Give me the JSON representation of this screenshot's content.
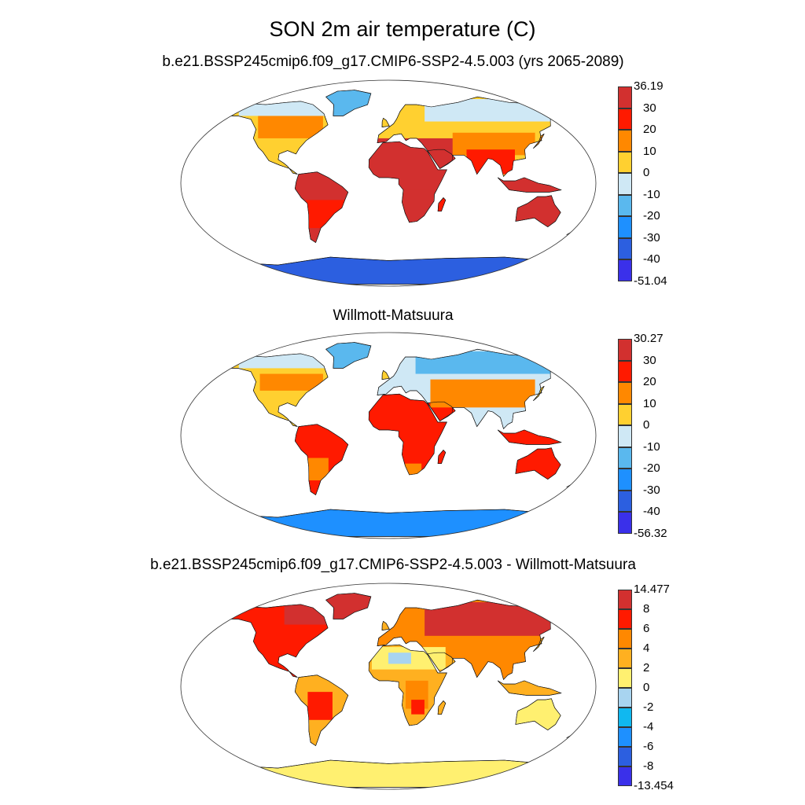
{
  "figure": {
    "title": "SON 2m air temperature (C)"
  },
  "panels": [
    {
      "subtitle": "b.e21.BSSP245cmip6.f09_g17.CMIP6-SSP2-4.5.003 (yrs 2065-2089)",
      "field": "model",
      "colorbar": {
        "labels": [
          "36.19",
          "30",
          "20",
          "10",
          "0",
          "-10",
          "-20",
          "-30",
          "-40",
          "-51.04"
        ],
        "colors": [
          "#d2302f",
          "#ff1a00",
          "#ff8800",
          "#ffd030",
          "#cfe8f5",
          "#5ab8ee",
          "#1e90ff",
          "#2c5fe0",
          "#3a30ea"
        ]
      }
    },
    {
      "subtitle": "Willmott-Matsuura",
      "field": "obs",
      "colorbar": {
        "labels": [
          "30.27",
          "30",
          "20",
          "10",
          "0",
          "-10",
          "-20",
          "-30",
          "-40",
          "-56.32"
        ],
        "colors": [
          "#d2302f",
          "#ff1a00",
          "#ff8800",
          "#ffd030",
          "#cfe8f5",
          "#5ab8ee",
          "#1e90ff",
          "#2c5fe0",
          "#3a30ea"
        ]
      }
    },
    {
      "subtitle": "b.e21.BSSP245cmip6.f09_g17.CMIP6-SSP2-4.5.003 - Willmott-Matsuura",
      "field": "diff",
      "colorbar": {
        "labels": [
          "14.477",
          "8",
          "6",
          "4",
          "2",
          "0",
          "-2",
          "-4",
          "-6",
          "-8",
          "-13.454"
        ],
        "colors": [
          "#d2302f",
          "#ff1a00",
          "#ff8800",
          "#ffb020",
          "#fff070",
          "#a8d4f0",
          "#10b8f0",
          "#1e90ff",
          "#2c5fe0",
          "#3a30ea"
        ]
      }
    }
  ]
}
